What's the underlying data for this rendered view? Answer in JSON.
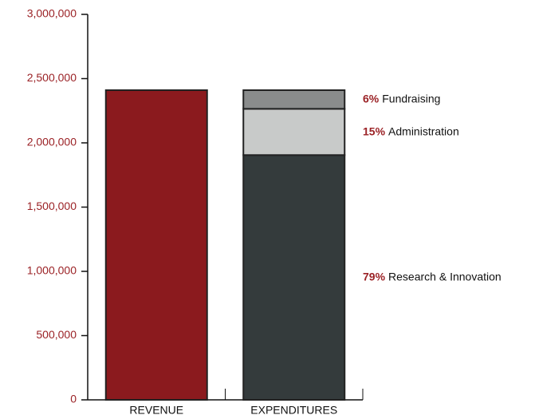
{
  "chart_data": {
    "type": "stacked_bar",
    "categories": [
      "REVENUE",
      "EXPENDITURES"
    ],
    "series": [
      {
        "color": "#8b1a1e",
        "values": [
          2410000,
          null
        ]
      },
      {
        "name": "Research & Innovation",
        "color": "#343b3c",
        "values": [
          null,
          1905000
        ],
        "value_labels": [
          null,
          "79%"
        ]
      },
      {
        "name": "Administration",
        "color": "#c8cac9",
        "values": [
          null,
          360000
        ],
        "value_labels": [
          null,
          "15%"
        ]
      },
      {
        "name": "Fundraising",
        "color": "#8a8c8c",
        "values": [
          null,
          145000
        ],
        "value_labels": [
          null,
          "6%"
        ]
      }
    ],
    "ylim": [
      0,
      3000000
    ],
    "yticks": [
      0,
      {
        "value": 500000,
        "label": "500,000"
      },
      {
        "value": 1000000,
        "label": "1,000,000"
      },
      {
        "value": 1500000,
        "label": "1,500,000"
      },
      {
        "value": 2000000,
        "label": "2,000,000"
      },
      {
        "value": 2500000,
        "label": "2,500,000"
      },
      {
        "value": 3000000,
        "label": "3,000,000"
      }
    ],
    "grid": false
  }
}
